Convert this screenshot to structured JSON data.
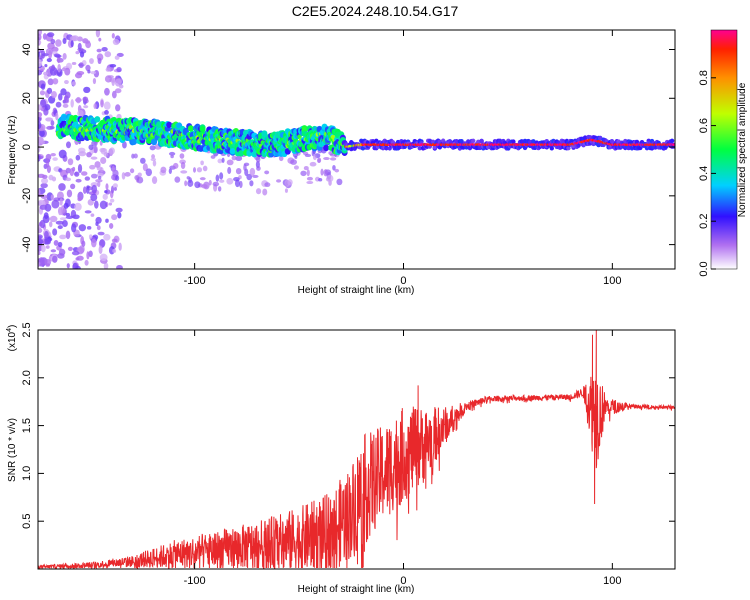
{
  "title": "C2E5.2024.248.10.54.G17",
  "chart_data": [
    {
      "type": "heatmap",
      "xlabel": "Height of straight line (km)",
      "ylabel": "Frequency (Hz)",
      "xlim": [
        -175,
        130
      ],
      "ylim": [
        -50,
        48
      ],
      "xticks": [
        -100,
        0,
        100
      ],
      "yticks": [
        -40,
        -20,
        0,
        20,
        40
      ],
      "colorbar": {
        "label": "Normalized spectral amplitude",
        "range": [
          0,
          1
        ],
        "ticks": [
          0.0,
          0.2,
          0.4,
          0.6,
          0.8
        ],
        "tick_labels": [
          "0.0",
          "0.2",
          "0.4",
          "0.6",
          "0.8"
        ],
        "colormap": "rainbow"
      },
      "ridge": [
        {
          "x": -160,
          "y": 8
        },
        {
          "x": -140,
          "y": 7
        },
        {
          "x": -120,
          "y": 6
        },
        {
          "x": -100,
          "y": 4
        },
        {
          "x": -80,
          "y": 2
        },
        {
          "x": -60,
          "y": 1
        },
        {
          "x": -45,
          "y": 4
        },
        {
          "x": -35,
          "y": 4
        },
        {
          "x": -28,
          "y": 0
        },
        {
          "x": -20,
          "y": 1
        },
        {
          "x": 0,
          "y": 1
        },
        {
          "x": 40,
          "y": 1
        },
        {
          "x": 80,
          "y": 1
        },
        {
          "x": 90,
          "y": 3
        },
        {
          "x": 100,
          "y": 1
        },
        {
          "x": 130,
          "y": 1
        }
      ]
    },
    {
      "type": "line",
      "xlabel": "Height of straight line (km)",
      "ylabel": "SNR (10 * v/v)",
      "yscale_label": "(x10",
      "yscale_exponent": "4",
      "xlim": [
        -175,
        130
      ],
      "ylim": [
        0,
        2.5
      ],
      "xticks": [
        -100,
        0,
        100
      ],
      "yticks": [
        0.5,
        1.0,
        1.5,
        2.0,
        2.5
      ],
      "ytick_labels": [
        "0.5",
        "1.0",
        "1.5",
        "2.0",
        "2.5"
      ],
      "color": "#e8282b",
      "envelope": [
        {
          "x": -175,
          "base": 0.02,
          "noise": 0.02
        },
        {
          "x": -150,
          "base": 0.04,
          "noise": 0.03
        },
        {
          "x": -130,
          "base": 0.08,
          "noise": 0.06
        },
        {
          "x": -110,
          "base": 0.15,
          "noise": 0.15
        },
        {
          "x": -90,
          "base": 0.2,
          "noise": 0.2
        },
        {
          "x": -70,
          "base": 0.25,
          "noise": 0.25
        },
        {
          "x": -50,
          "base": 0.3,
          "noise": 0.35
        },
        {
          "x": -35,
          "base": 0.4,
          "noise": 0.4
        },
        {
          "x": -25,
          "base": 0.6,
          "noise": 0.5
        },
        {
          "x": -20,
          "base": 0.8,
          "noise": 0.6
        },
        {
          "x": -10,
          "base": 1.0,
          "noise": 0.5
        },
        {
          "x": 0,
          "base": 1.2,
          "noise": 0.5
        },
        {
          "x": 10,
          "base": 1.3,
          "noise": 0.4
        },
        {
          "x": 20,
          "base": 1.5,
          "noise": 0.2
        },
        {
          "x": 30,
          "base": 1.7,
          "noise": 0.05
        },
        {
          "x": 40,
          "base": 1.78,
          "noise": 0.03
        },
        {
          "x": 60,
          "base": 1.79,
          "noise": 0.03
        },
        {
          "x": 80,
          "base": 1.8,
          "noise": 0.03
        },
        {
          "x": 86,
          "base": 1.85,
          "noise": 0.05
        },
        {
          "x": 92,
          "base": 1.6,
          "noise": 0.6
        },
        {
          "x": 97,
          "base": 1.7,
          "noise": 0.1
        },
        {
          "x": 110,
          "base": 1.7,
          "noise": 0.02
        },
        {
          "x": 130,
          "base": 1.69,
          "noise": 0.02
        }
      ],
      "spikes": [
        {
          "x": 90.5,
          "y": 2.45
        },
        {
          "x": 91.5,
          "y": 0.68
        },
        {
          "x": 92.3,
          "y": 2.5
        },
        {
          "x": 7,
          "y": 1.92
        },
        {
          "x": -22,
          "y": 0.05
        }
      ]
    }
  ]
}
